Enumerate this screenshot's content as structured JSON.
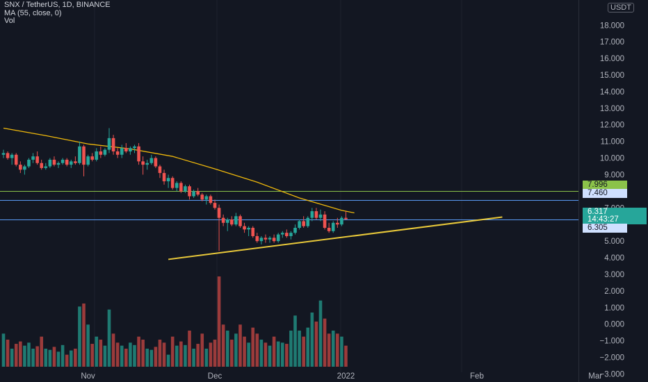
{
  "legend": {
    "symbol": "SNX / TetherUS, 1D, BINANCE",
    "ma": "MA (55, close, 0)",
    "vol": "Vol"
  },
  "currency_button": "USDT",
  "colors": {
    "background": "#131722",
    "up": "#26a69a",
    "down": "#ef5350",
    "ma_line": "#f0b90b",
    "trendline": "#e9c93a",
    "green_level": "#8bc34a",
    "blue_level": "#5b9cf6",
    "axis_text": "#b2b5be"
  },
  "price_tags": {
    "green_level": "7.996",
    "blue_level": "7.460",
    "last_price": "6.317",
    "countdown": "14:43:27",
    "current_line": "6.305"
  },
  "chart_data": {
    "type": "candlestick",
    "title": "SNX / TetherUS, 1D, BINANCE",
    "y_axis": {
      "range": [
        -3.4,
        19.6
      ],
      "ticks": [
        "18.000",
        "17.000",
        "16.000",
        "15.000",
        "14.000",
        "13.000",
        "12.000",
        "11.000",
        "10.000",
        "9.000",
        "7.000",
        "5.000",
        "4.000",
        "3.000",
        "2.000",
        "1.000",
        "0.000",
        "−1.000",
        "−2.000",
        "−3.000"
      ]
    },
    "x_axis": {
      "labels": [
        {
          "text": "Nov",
          "day": 20
        },
        {
          "text": "Dec",
          "day": 50
        },
        {
          "text": "2022",
          "day": 81
        },
        {
          "text": "Feb",
          "day": 112
        },
        {
          "text": "Mar",
          "day": 140
        }
      ]
    },
    "horizontal_levels": [
      {
        "name": "green_level",
        "price": 7.996
      },
      {
        "name": "blue_level",
        "price": 7.46
      },
      {
        "name": "current_line",
        "price": 6.305
      }
    ],
    "trendline": {
      "from": {
        "day": 39,
        "price": 3.9
      },
      "to": {
        "day": 118,
        "price": 6.45
      }
    },
    "ma55": [
      [
        0,
        11.8
      ],
      [
        10,
        11.35
      ],
      [
        20,
        10.85
      ],
      [
        30,
        10.55
      ],
      [
        40,
        10.1
      ],
      [
        50,
        9.35
      ],
      [
        60,
        8.55
      ],
      [
        70,
        7.6
      ],
      [
        80,
        6.85
      ],
      [
        83,
        6.7
      ]
    ],
    "ohlc": [
      [
        0,
        10.2,
        10.5,
        10.0,
        10.3
      ],
      [
        1,
        10.3,
        10.4,
        9.9,
        10.0
      ],
      [
        2,
        10.0,
        10.3,
        9.6,
        10.2
      ],
      [
        3,
        10.2,
        10.3,
        9.5,
        9.6
      ],
      [
        4,
        9.6,
        9.8,
        9.1,
        9.3
      ],
      [
        5,
        9.3,
        9.6,
        9.0,
        9.5
      ],
      [
        6,
        9.5,
        10.0,
        9.4,
        9.9
      ],
      [
        7,
        9.9,
        10.3,
        9.7,
        10.1
      ],
      [
        8,
        10.1,
        10.4,
        9.6,
        9.7
      ],
      [
        9,
        9.7,
        9.9,
        9.3,
        9.4
      ],
      [
        10,
        9.4,
        9.7,
        9.3,
        9.5
      ],
      [
        11,
        9.5,
        10.0,
        9.4,
        9.9
      ],
      [
        12,
        9.9,
        10.1,
        9.5,
        9.6
      ],
      [
        13,
        9.6,
        9.8,
        9.4,
        9.7
      ],
      [
        14,
        9.7,
        10.0,
        9.6,
        9.9
      ],
      [
        15,
        9.9,
        10.0,
        9.5,
        9.6
      ],
      [
        16,
        9.6,
        9.9,
        9.4,
        9.8
      ],
      [
        17,
        9.8,
        10.1,
        9.6,
        9.7
      ],
      [
        18,
        9.7,
        11.0,
        9.6,
        10.7
      ],
      [
        19,
        10.7,
        10.8,
        8.9,
        9.6
      ],
      [
        20,
        9.6,
        10.2,
        9.5,
        10.1
      ],
      [
        21,
        10.1,
        10.3,
        9.8,
        9.9
      ],
      [
        22,
        9.9,
        10.6,
        9.8,
        10.4
      ],
      [
        23,
        10.4,
        10.7,
        10.0,
        10.2
      ],
      [
        24,
        10.2,
        10.6,
        10.1,
        10.5
      ],
      [
        25,
        10.5,
        11.8,
        10.3,
        11.2
      ],
      [
        26,
        11.2,
        11.4,
        10.2,
        10.4
      ],
      [
        27,
        10.4,
        10.6,
        10.0,
        10.2
      ],
      [
        28,
        10.2,
        10.8,
        10.0,
        10.6
      ],
      [
        29,
        10.6,
        10.9,
        10.3,
        10.4
      ],
      [
        30,
        10.4,
        10.7,
        10.2,
        10.6
      ],
      [
        31,
        10.6,
        10.8,
        10.3,
        10.7
      ],
      [
        32,
        10.7,
        10.9,
        9.6,
        9.8
      ],
      [
        33,
        9.8,
        10.1,
        9.0,
        9.6
      ],
      [
        34,
        9.6,
        9.9,
        9.3,
        9.7
      ],
      [
        35,
        9.7,
        10.2,
        9.6,
        10.0
      ],
      [
        36,
        10.0,
        10.1,
        9.4,
        9.5
      ],
      [
        37,
        9.5,
        9.6,
        8.8,
        9.1
      ],
      [
        38,
        9.1,
        9.3,
        8.4,
        8.6
      ],
      [
        39,
        8.6,
        9.0,
        8.2,
        8.8
      ],
      [
        40,
        8.8,
        8.9,
        8.1,
        8.2
      ],
      [
        41,
        8.2,
        8.6,
        8.0,
        8.5
      ],
      [
        42,
        8.5,
        8.6,
        7.9,
        8.0
      ],
      [
        43,
        8.0,
        8.4,
        7.9,
        8.3
      ],
      [
        44,
        8.3,
        8.4,
        7.5,
        7.7
      ],
      [
        45,
        7.7,
        8.1,
        7.6,
        8.0
      ],
      [
        46,
        8.0,
        8.2,
        7.7,
        7.8
      ],
      [
        47,
        7.8,
        7.9,
        7.4,
        7.5
      ],
      [
        48,
        7.5,
        7.8,
        7.2,
        7.7
      ],
      [
        49,
        7.7,
        7.8,
        7.2,
        7.3
      ],
      [
        50,
        7.3,
        7.5,
        6.9,
        7.0
      ],
      [
        51,
        7.0,
        7.2,
        4.4,
        6.4
      ],
      [
        52,
        6.4,
        6.6,
        5.9,
        6.1
      ],
      [
        53,
        6.1,
        6.4,
        5.6,
        6.3
      ],
      [
        54,
        6.3,
        6.5,
        5.9,
        6.0
      ],
      [
        55,
        6.0,
        6.7,
        5.9,
        6.5
      ],
      [
        56,
        6.5,
        6.6,
        5.8,
        5.9
      ],
      [
        57,
        5.9,
        6.1,
        5.5,
        5.7
      ],
      [
        58,
        5.7,
        5.9,
        5.3,
        5.8
      ],
      [
        59,
        5.8,
        5.9,
        5.2,
        5.3
      ],
      [
        60,
        5.3,
        5.5,
        4.9,
        5.0
      ],
      [
        61,
        5.0,
        5.3,
        4.8,
        5.2
      ],
      [
        62,
        5.2,
        5.4,
        4.9,
        5.1
      ],
      [
        63,
        5.1,
        5.3,
        4.9,
        5.2
      ],
      [
        64,
        5.2,
        5.4,
        4.9,
        5.0
      ],
      [
        65,
        5.0,
        5.5,
        4.9,
        5.4
      ],
      [
        66,
        5.4,
        5.6,
        5.2,
        5.5
      ],
      [
        67,
        5.5,
        5.7,
        5.2,
        5.3
      ],
      [
        68,
        5.3,
        5.6,
        5.1,
        5.5
      ],
      [
        69,
        5.5,
        6.0,
        5.4,
        5.8
      ],
      [
        70,
        5.8,
        6.3,
        5.7,
        6.2
      ],
      [
        71,
        6.2,
        6.5,
        5.8,
        5.9
      ],
      [
        72,
        5.9,
        6.5,
        5.8,
        6.4
      ],
      [
        73,
        6.4,
        7.0,
        6.2,
        6.8
      ],
      [
        74,
        6.8,
        7.0,
        6.3,
        6.4
      ],
      [
        75,
        6.4,
        6.9,
        6.2,
        6.6
      ],
      [
        76,
        6.6,
        6.8,
        5.7,
        5.8
      ],
      [
        77,
        5.8,
        6.1,
        5.5,
        5.6
      ],
      [
        78,
        5.6,
        6.2,
        5.5,
        6.1
      ],
      [
        79,
        6.1,
        6.4,
        5.8,
        6.0
      ],
      [
        80,
        6.0,
        6.5,
        5.9,
        6.4
      ],
      [
        81,
        6.4,
        6.8,
        6.3,
        6.317
      ]
    ],
    "volume": [
      0.55,
      0.45,
      0.3,
      0.38,
      0.42,
      0.35,
      0.4,
      0.3,
      0.34,
      0.5,
      0.3,
      0.28,
      0.33,
      0.25,
      0.36,
      0.2,
      0.27,
      0.3,
      1.0,
      1.05,
      0.7,
      0.38,
      0.5,
      0.45,
      0.35,
      0.95,
      0.55,
      0.4,
      0.35,
      0.3,
      0.4,
      0.36,
      0.5,
      0.45,
      0.3,
      0.28,
      0.33,
      0.45,
      0.4,
      0.2,
      0.5,
      0.35,
      0.42,
      0.36,
      0.6,
      0.3,
      0.38,
      0.55,
      0.3,
      0.4,
      0.45,
      1.5,
      0.7,
      0.6,
      0.45,
      0.55,
      0.7,
      0.5,
      0.4,
      0.65,
      0.55,
      0.45,
      0.4,
      0.35,
      0.5,
      0.42,
      0.4,
      0.38,
      0.6,
      0.85,
      0.6,
      0.5,
      0.65,
      0.9,
      0.75,
      1.1,
      0.8,
      0.55,
      0.6,
      0.55,
      0.5,
      0.35
    ]
  }
}
